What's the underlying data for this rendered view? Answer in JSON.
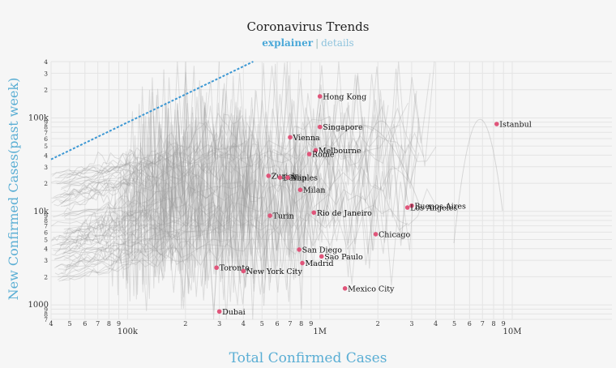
{
  "title": "Coronavirus Trends",
  "links": {
    "explainer": "explainer",
    "separator": "|",
    "details": "details"
  },
  "chart_data": {
    "type": "line",
    "title": "Coronavirus Trends",
    "xlabel": "Total Confirmed Cases",
    "ylabel": "New Confirmed Cases(past week)",
    "xscale": "log",
    "yscale": "log",
    "xlim": [
      40000,
      13000000
    ],
    "ylim": [
      700,
      400000
    ],
    "grid": true,
    "colors": {
      "highlight": "#e0557a",
      "trace": "#9a9a9a",
      "reference": "#3b97d3",
      "axis_title": "#5aaed4"
    },
    "x_ticks": [
      {
        "v": 40000,
        "t": "4"
      },
      {
        "v": 50000,
        "t": "5"
      },
      {
        "v": 60000,
        "t": "6"
      },
      {
        "v": 70000,
        "t": "7"
      },
      {
        "v": 80000,
        "t": "8"
      },
      {
        "v": 90000,
        "t": "9"
      },
      {
        "v": 100000,
        "t": "100k"
      },
      {
        "v": 200000,
        "t": "2"
      },
      {
        "v": 300000,
        "t": "3"
      },
      {
        "v": 400000,
        "t": "4"
      },
      {
        "v": 500000,
        "t": "5"
      },
      {
        "v": 600000,
        "t": "6"
      },
      {
        "v": 700000,
        "t": "7"
      },
      {
        "v": 800000,
        "t": "8"
      },
      {
        "v": 900000,
        "t": "9"
      },
      {
        "v": 1000000,
        "t": "1M"
      },
      {
        "v": 2000000,
        "t": "2"
      },
      {
        "v": 3000000,
        "t": "3"
      },
      {
        "v": 4000000,
        "t": "4"
      },
      {
        "v": 5000000,
        "t": "5"
      },
      {
        "v": 6000000,
        "t": "6"
      },
      {
        "v": 7000000,
        "t": "7"
      },
      {
        "v": 8000000,
        "t": "8"
      },
      {
        "v": 9000000,
        "t": "9"
      },
      {
        "v": 10000000,
        "t": "10M"
      }
    ],
    "y_ticks": [
      {
        "v": 700,
        "t": "7"
      },
      {
        "v": 800,
        "t": "8"
      },
      {
        "v": 900,
        "t": "9"
      },
      {
        "v": 1000,
        "t": "1000"
      },
      {
        "v": 2000,
        "t": "2"
      },
      {
        "v": 3000,
        "t": "3"
      },
      {
        "v": 4000,
        "t": "4"
      },
      {
        "v": 5000,
        "t": "5"
      },
      {
        "v": 6000,
        "t": "6"
      },
      {
        "v": 7000,
        "t": "7"
      },
      {
        "v": 8000,
        "t": "8"
      },
      {
        "v": 9000,
        "t": "9"
      },
      {
        "v": 10000,
        "t": "10k"
      },
      {
        "v": 20000,
        "t": "2"
      },
      {
        "v": 30000,
        "t": "3"
      },
      {
        "v": 40000,
        "t": "4"
      },
      {
        "v": 50000,
        "t": "5"
      },
      {
        "v": 60000,
        "t": "6"
      },
      {
        "v": 70000,
        "t": "7"
      },
      {
        "v": 80000,
        "t": "8"
      },
      {
        "v": 90000,
        "t": "9"
      },
      {
        "v": 100000,
        "t": "100k"
      },
      {
        "v": 200000,
        "t": "2"
      },
      {
        "v": 300000,
        "t": "3"
      },
      {
        "v": 400000,
        "t": "4"
      }
    ],
    "reference_line": {
      "x": [
        40000,
        450000
      ],
      "y": [
        36000,
        400000
      ]
    },
    "cities": [
      {
        "name": "Hong Kong",
        "x": 1000000,
        "y": 170000
      },
      {
        "name": "Istanbul",
        "x": 8300000,
        "y": 86000
      },
      {
        "name": "Singapore",
        "x": 1000000,
        "y": 80000
      },
      {
        "name": "Vienna",
        "x": 700000,
        "y": 62000
      },
      {
        "name": "Melbourne",
        "x": 950000,
        "y": 45000
      },
      {
        "name": "Rome",
        "x": 880000,
        "y": 41000
      },
      {
        "name": "Zurich",
        "x": 540000,
        "y": 24000
      },
      {
        "name": "Berlin",
        "x": 620000,
        "y": 23000
      },
      {
        "name": "Naples",
        "x": 680000,
        "y": 23000
      },
      {
        "name": "Milan",
        "x": 790000,
        "y": 17000
      },
      {
        "name": "Buenos Aires",
        "x": 3000000,
        "y": 11500
      },
      {
        "name": "Los Angeles",
        "x": 2850000,
        "y": 11000
      },
      {
        "name": "Rio de Janeiro",
        "x": 930000,
        "y": 9700
      },
      {
        "name": "Turin",
        "x": 550000,
        "y": 9000
      },
      {
        "name": "Chicago",
        "x": 1950000,
        "y": 5700
      },
      {
        "name": "San Diego",
        "x": 780000,
        "y": 3900
      },
      {
        "name": "Sao Paulo",
        "x": 1020000,
        "y": 3300
      },
      {
        "name": "Madrid",
        "x": 810000,
        "y": 2800
      },
      {
        "name": "Toronto",
        "x": 290000,
        "y": 2500
      },
      {
        "name": "New York City",
        "x": 400000,
        "y": 2300
      },
      {
        "name": "Mexico City",
        "x": 1350000,
        "y": 1500
      },
      {
        "name": "Dubai",
        "x": 300000,
        "y": 850
      }
    ]
  }
}
